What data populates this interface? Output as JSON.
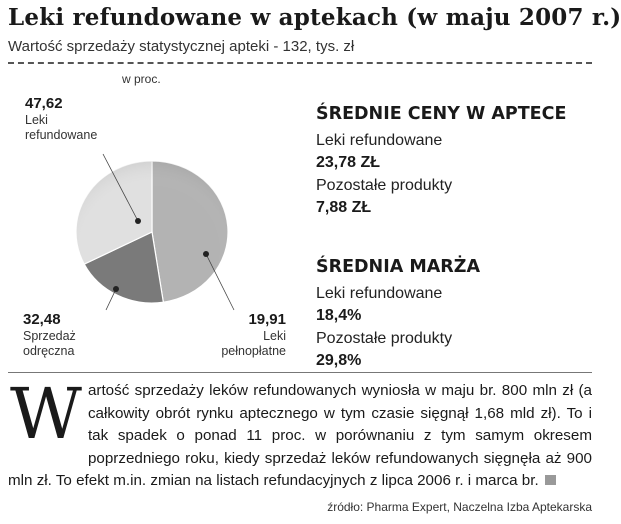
{
  "header": {
    "title": "Leki refundowane w aptekach (w maju 2007 r.)",
    "subtitle": "Wartość sprzedaży statystycznej apteki - 132, tys. zł",
    "unit": "w proc."
  },
  "chart_data": {
    "type": "pie",
    "unit": "w proc.",
    "slices": [
      {
        "value": 47.62,
        "value_label": "47,62",
        "label": [
          "Leki",
          "refundowane"
        ],
        "color": "#b3b3b3"
      },
      {
        "value": 19.91,
        "value_label": "19,91",
        "label": [
          "Leki",
          "pełnopłatne"
        ],
        "color": "#7a7a7a"
      },
      {
        "value": 32.48,
        "value_label": "32,48",
        "label": [
          "Sprzedaż",
          "odręczna"
        ],
        "color": "#e0e0e0"
      }
    ]
  },
  "avg_prices": {
    "heading": "ŚREDNIE CENY W APTECE",
    "items": [
      {
        "label": "Leki refundowane",
        "value": "23,78 ZŁ"
      },
      {
        "label": "Pozostałe produkty",
        "value": "7,88 ZŁ"
      }
    ]
  },
  "avg_margin": {
    "heading": "ŚREDNIA MARŻA",
    "items": [
      {
        "label": "Leki refundowane",
        "value": "18,4%"
      },
      {
        "label": "Pozostałe produkty",
        "value": "29,8%"
      }
    ]
  },
  "article": {
    "drop_cap": "W",
    "text": "artość sprzedaży leków refundowanych wyniosła w maju br. 800 mln zł (a całkowity obrót rynku aptecznego w tym czasie sięgnął 1,68 mld zł). To i tak spadek o ponad 11 proc. w porównaniu z tym samym okresem poprzedniego roku, kiedy sprzedaż leków refundowanych sięgnęła aż 900 mln zł. To efekt m.in. zmian na listach refundacyjnych z lipca 2006 r. i marca br."
  },
  "source": "źródło: Pharma Expert, Naczelna Izba Aptekarska"
}
